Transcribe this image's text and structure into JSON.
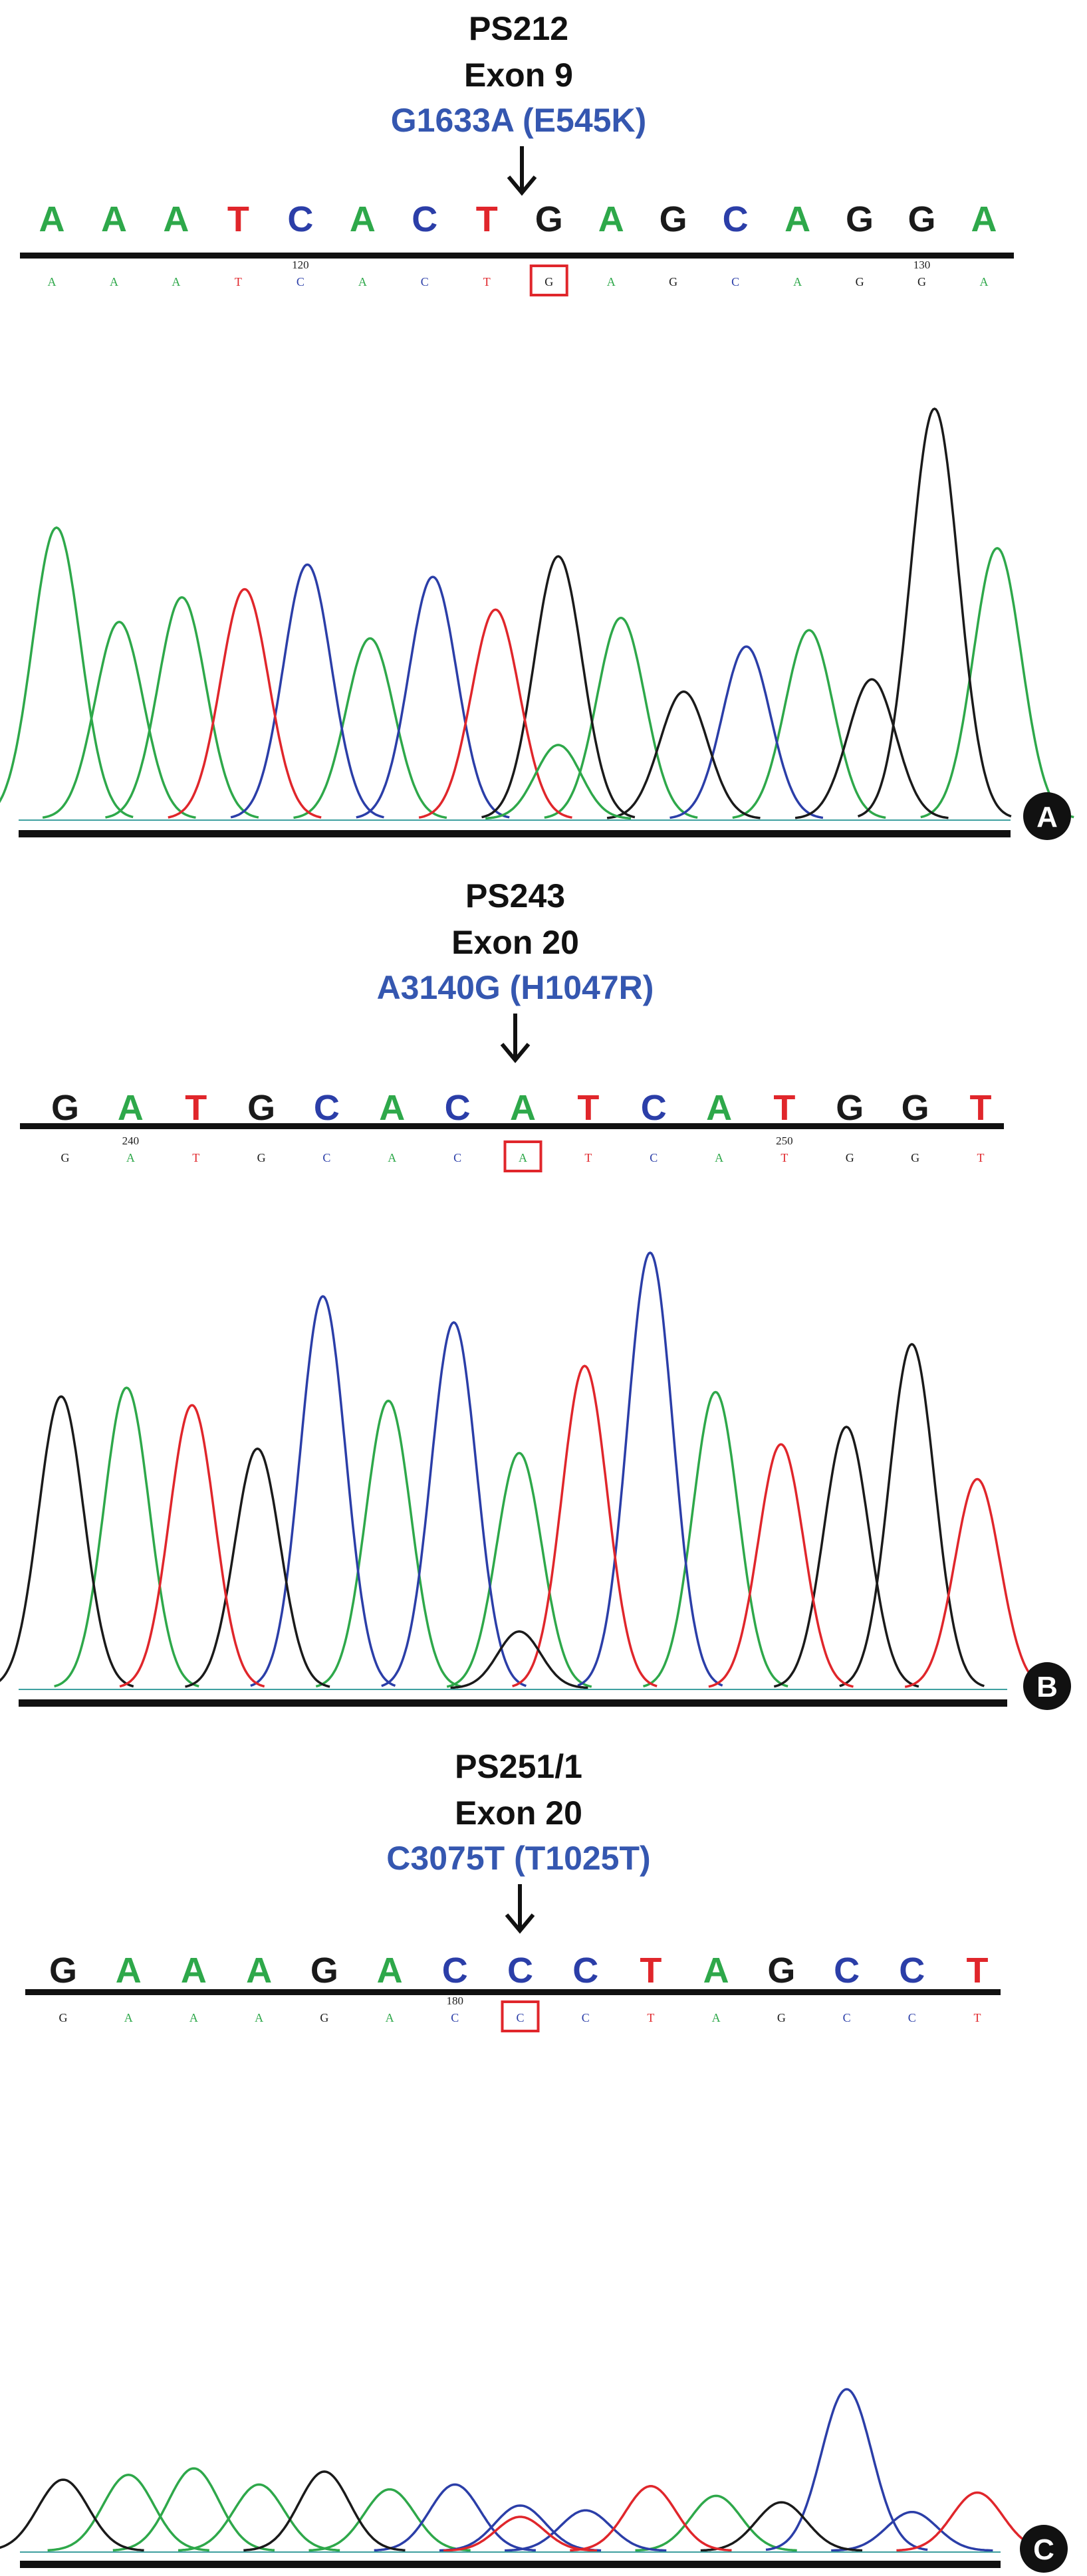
{
  "colors": {
    "A": "#2ea84a",
    "C": "#2b3ea8",
    "G": "#1a1a1a",
    "T": "#e0262b",
    "title": "#111111",
    "mutation": "#3557b0",
    "highlight": "#e0262b"
  },
  "panels": [
    {
      "label": "A",
      "sample": "PS212",
      "exon": "Exon 9",
      "mutation": "G1633A (E545K)",
      "sequence": [
        "A",
        "A",
        "A",
        "T",
        "C",
        "A",
        "C",
        "T",
        "G",
        "A",
        "G",
        "C",
        "A",
        "G",
        "G",
        "A"
      ],
      "called_bases": [
        "A",
        "A",
        "A",
        "T",
        "C",
        "A",
        "C",
        "T",
        "G",
        "A",
        "G",
        "C",
        "A",
        "G",
        "G",
        "A"
      ],
      "position_numbers": [
        {
          "index": 4,
          "value": "120"
        },
        {
          "index": 14,
          "value": "130"
        }
      ],
      "highlight_index": 8,
      "trace": {
        "A": [
          {
            "i": 0,
            "h": 0.71
          },
          {
            "i": 1,
            "h": 0.48
          },
          {
            "i": 2,
            "h": 0.54
          },
          {
            "i": 5,
            "h": 0.44
          },
          {
            "i": 9,
            "h": 0.49
          },
          {
            "i": 12,
            "h": 0.46
          },
          {
            "i": 15,
            "h": 0.66
          }
        ],
        "C": [
          {
            "i": 4,
            "h": 0.62
          },
          {
            "i": 6,
            "h": 0.59
          },
          {
            "i": 11,
            "h": 0.42
          }
        ],
        "G": [
          {
            "i": 8,
            "h": 0.64
          },
          {
            "i": 10,
            "h": 0.31
          },
          {
            "i": 13,
            "h": 0.34
          },
          {
            "i": 14,
            "h": 1.0
          }
        ],
        "T": [
          {
            "i": 3,
            "h": 0.56
          },
          {
            "i": 7,
            "h": 0.51
          }
        ],
        "secondary": [
          {
            "base": "A",
            "i": 8,
            "h": 0.18
          }
        ]
      }
    },
    {
      "label": "B",
      "sample": "PS243",
      "exon": "Exon 20",
      "mutation": "A3140G (H1047R)",
      "sequence": [
        "G",
        "A",
        "T",
        "G",
        "C",
        "A",
        "C",
        "A",
        "T",
        "C",
        "A",
        "T",
        "G",
        "G",
        "T"
      ],
      "called_bases": [
        "G",
        "A",
        "T",
        "G",
        "C",
        "A",
        "C",
        "A",
        "T",
        "C",
        "A",
        "T",
        "G",
        "G",
        "T"
      ],
      "position_numbers": [
        {
          "index": 1,
          "value": "240"
        },
        {
          "index": 11,
          "value": "250"
        }
      ],
      "highlight_index": 7,
      "trace": {
        "A": [
          {
            "i": 1,
            "h": 0.69
          },
          {
            "i": 5,
            "h": 0.66
          },
          {
            "i": 7,
            "h": 0.54
          },
          {
            "i": 10,
            "h": 0.68
          }
        ],
        "C": [
          {
            "i": 4,
            "h": 0.9
          },
          {
            "i": 6,
            "h": 0.84
          },
          {
            "i": 9,
            "h": 1.0
          }
        ],
        "G": [
          {
            "i": 0,
            "h": 0.67
          },
          {
            "i": 3,
            "h": 0.55
          },
          {
            "i": 12,
            "h": 0.6
          },
          {
            "i": 13,
            "h": 0.79
          }
        ],
        "T": [
          {
            "i": 2,
            "h": 0.65
          },
          {
            "i": 8,
            "h": 0.74
          },
          {
            "i": 11,
            "h": 0.56
          },
          {
            "i": 14,
            "h": 0.48
          }
        ],
        "secondary": [
          {
            "base": "G",
            "i": 7,
            "h": 0.13
          }
        ]
      }
    },
    {
      "label": "C",
      "sample": "PS251/1",
      "exon": "Exon 20",
      "mutation": "C3075T (T1025T)",
      "sequence": [
        "G",
        "A",
        "A",
        "A",
        "G",
        "A",
        "C",
        "C",
        "C",
        "T",
        "A",
        "G",
        "C",
        "C",
        "T"
      ],
      "called_bases": [
        "G",
        "A",
        "A",
        "A",
        "G",
        "A",
        "C",
        "C",
        "C",
        "T",
        "A",
        "G",
        "C",
        "C",
        "T"
      ],
      "position_numbers": [
        {
          "index": 6,
          "value": "180"
        }
      ],
      "highlight_index": 7,
      "trace": {
        "A": [
          {
            "i": 1,
            "h": 0.47
          },
          {
            "i": 2,
            "h": 0.51
          },
          {
            "i": 3,
            "h": 0.41
          },
          {
            "i": 5,
            "h": 0.38
          },
          {
            "i": 10,
            "h": 0.34
          }
        ],
        "C": [
          {
            "i": 6,
            "h": 0.41
          },
          {
            "i": 7,
            "h": 0.28
          },
          {
            "i": 8,
            "h": 0.25
          },
          {
            "i": 12,
            "h": 1.0
          },
          {
            "i": 13,
            "h": 0.24
          }
        ],
        "G": [
          {
            "i": 0,
            "h": 0.44
          },
          {
            "i": 4,
            "h": 0.49
          },
          {
            "i": 11,
            "h": 0.3
          }
        ],
        "T": [
          {
            "i": 9,
            "h": 0.4
          },
          {
            "i": 14,
            "h": 0.36
          }
        ],
        "secondary": [
          {
            "base": "T",
            "i": 7,
            "h": 0.21
          }
        ]
      }
    }
  ]
}
